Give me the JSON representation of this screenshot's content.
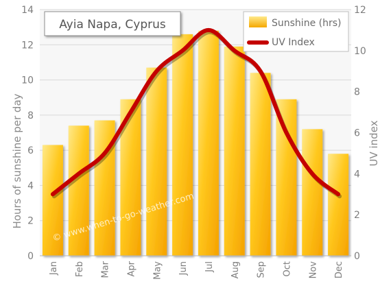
{
  "chart_data": {
    "type": "bar",
    "title": "Ayia Napa, Cyprus",
    "categories": [
      "Jan",
      "Feb",
      "Mar",
      "Apr",
      "May",
      "Jun",
      "Jul",
      "Aug",
      "Sep",
      "Oct",
      "Nov",
      "Dec"
    ],
    "series": [
      {
        "name": "Sunshine (hrs)",
        "type": "bar",
        "axis": "left",
        "values": [
          6.3,
          7.4,
          7.7,
          8.9,
          10.7,
          12.6,
          12.8,
          11.9,
          10.4,
          8.9,
          7.2,
          5.8
        ]
      },
      {
        "name": "UV Index",
        "type": "line",
        "axis": "right",
        "values": [
          3,
          4,
          5,
          7,
          9,
          10,
          11,
          10,
          9,
          6,
          4,
          3
        ]
      }
    ],
    "ylabel": "Hours of sunshine per day",
    "y2label": "UV index",
    "ylim": [
      0,
      14
    ],
    "y2lim": [
      0,
      12
    ],
    "yticks": [
      0,
      2,
      4,
      6,
      8,
      10,
      12,
      14
    ],
    "y2ticks": [
      0,
      2,
      4,
      6,
      8,
      10,
      12
    ],
    "grid": true,
    "legend": "top-right",
    "watermark": "© www.when-to-go-weather.com",
    "colors": {
      "bar_light": "#ffe066",
      "bar": "#ffc400",
      "bar_dark": "#f5a800",
      "line": "#c40000",
      "grid": "#d8d8d8"
    }
  }
}
